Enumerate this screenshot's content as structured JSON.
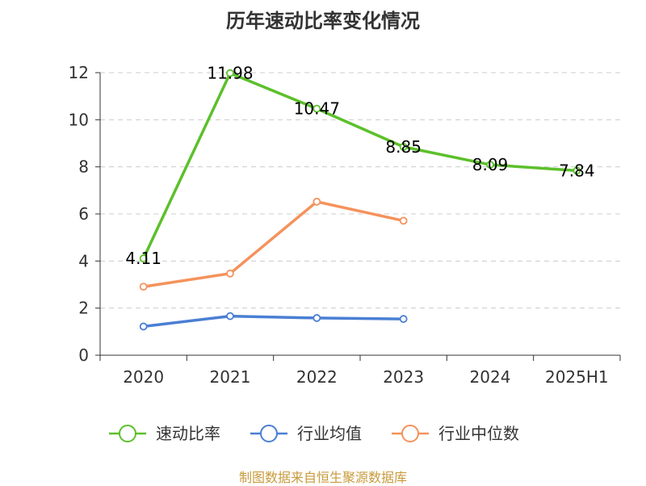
{
  "chart_data": {
    "type": "line",
    "title": "历年速动比率变化情况",
    "categories": [
      "2020",
      "2021",
      "2022",
      "2023",
      "2024",
      "2025H1"
    ],
    "ylim": [
      0,
      12
    ],
    "yticks": [
      0,
      2,
      4,
      6,
      8,
      10,
      12
    ],
    "grid": true,
    "legend_position": "bottom",
    "series": [
      {
        "name": "速动比率",
        "color": "#5cc02b",
        "values": [
          4.11,
          11.98,
          10.47,
          8.85,
          8.09,
          7.84
        ],
        "labels": [
          "4.11",
          "11.98",
          "10.47",
          "8.85",
          "8.09",
          "7.84"
        ],
        "show_labels": true
      },
      {
        "name": "行业均值",
        "color": "#4a7fd4",
        "values": [
          1.22,
          1.66,
          1.58,
          1.54,
          null,
          null
        ],
        "show_labels": false
      },
      {
        "name": "行业中位数",
        "color": "#f5925c",
        "values": [
          2.91,
          3.47,
          6.52,
          5.71,
          null,
          null
        ],
        "show_labels": false
      }
    ]
  },
  "source": "制图数据来自恒生聚源数据库"
}
